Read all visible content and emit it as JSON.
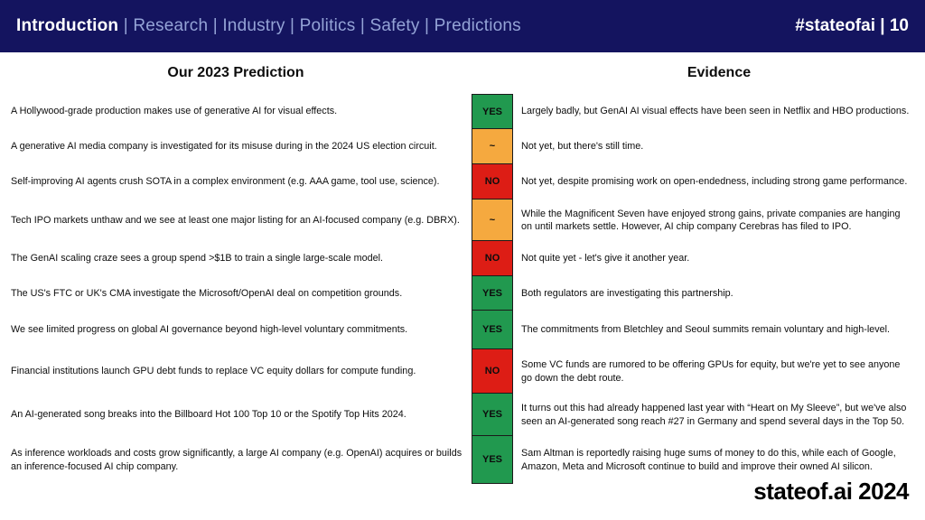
{
  "header": {
    "nav_items": [
      {
        "label": "Introduction",
        "active": true
      },
      {
        "label": "Research",
        "active": false
      },
      {
        "label": "Industry",
        "active": false
      },
      {
        "label": "Politics",
        "active": false
      },
      {
        "label": "Safety",
        "active": false
      },
      {
        "label": "Predictions",
        "active": false
      }
    ],
    "separator": "|",
    "badge": "#stateofai | 10"
  },
  "columns": {
    "prediction_title": "Our 2023 Prediction",
    "evidence_title": "Evidence"
  },
  "table": {
    "verdict_colors": {
      "YES": "#21994f",
      "~": "#f5a93f",
      "NO": "#dd1d15"
    },
    "rows": [
      {
        "prediction": "A Hollywood-grade production makes use of generative AI for visual effects.",
        "verdict": "YES",
        "evidence": "Largely badly, but GenAI AI visual effects have been seen in Netflix and HBO productions."
      },
      {
        "prediction": "A generative AI media company is investigated for its misuse during in the 2024 US election circuit.",
        "verdict": "~",
        "evidence": "Not yet, but there's still time."
      },
      {
        "prediction": "Self-improving AI agents crush SOTA in a complex environment (e.g. AAA game, tool use, science).",
        "verdict": "NO",
        "evidence": "Not yet, despite promising work on open-endedness, including strong game performance."
      },
      {
        "prediction": "Tech IPO markets unthaw and we see at least one major listing for an AI-focused company (e.g. DBRX).",
        "verdict": "~",
        "evidence": "While the Magnificent Seven have enjoyed strong gains, private companies are hanging on until markets settle. However, AI chip company Cerebras has filed to IPO."
      },
      {
        "prediction": "The GenAI scaling craze sees a group spend >$1B to train a single large-scale model.",
        "verdict": "NO",
        "evidence": "Not quite yet - let's give it another year."
      },
      {
        "prediction": "The US's FTC or UK's CMA investigate the Microsoft/OpenAI deal on competition grounds.",
        "verdict": "YES",
        "evidence": "Both regulators are investigating this partnership."
      },
      {
        "prediction": "We see limited progress on global AI governance beyond high-level voluntary commitments.",
        "verdict": "YES",
        "evidence": "The commitments from Bletchley and Seoul summits remain voluntary and high-level."
      },
      {
        "prediction": "Financial institutions launch GPU debt funds to replace VC equity dollars for compute funding.",
        "verdict": "NO",
        "evidence": "Some VC funds are rumored to be offering GPUs for equity, but we're yet to see anyone go down the debt route."
      },
      {
        "prediction": "An AI-generated song breaks into the Billboard Hot 100 Top 10 or the Spotify Top Hits 2024.",
        "verdict": "YES",
        "evidence": "It turns out this had already happened last year with “Heart on My Sleeve”, but we've also seen an AI-generated song reach #27 in Germany and spend several days in the Top 50."
      },
      {
        "prediction": "As inference workloads and costs grow significantly, a large AI company (e.g. OpenAI) acquires or builds an inference-focused AI chip company.",
        "verdict": "YES",
        "evidence": "Sam Altman is reportedly raising huge sums of money to do this, while each of Google, Amazon, Meta and Microsoft continue to build and improve their owned AI silicon."
      }
    ]
  },
  "footer": {
    "brand": "stateof.ai 2024"
  }
}
